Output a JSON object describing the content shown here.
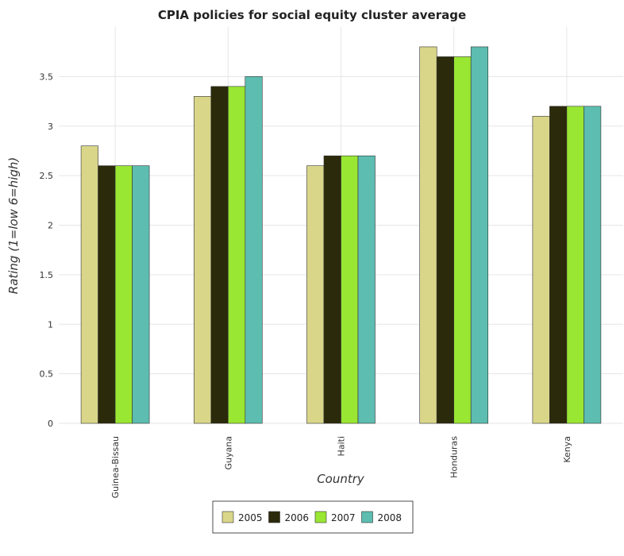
{
  "chart_data": {
    "type": "bar",
    "title": "CPIA policies for social equity cluster average",
    "xlabel": "Country",
    "ylabel": "Rating (1=low 6=high)",
    "categories": [
      "Guinea-Bissau",
      "Guyana",
      "Haiti",
      "Honduras",
      "Kenya"
    ],
    "series": [
      {
        "name": "2005",
        "color": "#d9d68a",
        "values": [
          2.8,
          3.3,
          2.6,
          3.8,
          3.1
        ]
      },
      {
        "name": "2006",
        "color": "#2b2a0a",
        "values": [
          2.6,
          3.4,
          2.7,
          3.7,
          3.2
        ]
      },
      {
        "name": "2007",
        "color": "#99e633",
        "values": [
          2.6,
          3.4,
          2.7,
          3.7,
          3.2
        ]
      },
      {
        "name": "2008",
        "color": "#5cbdb0",
        "values": [
          2.6,
          3.5,
          2.7,
          3.8,
          3.2
        ]
      }
    ],
    "ylim": [
      0,
      4
    ],
    "yticks": [
      0,
      0.5,
      1,
      1.5,
      2,
      2.5,
      3,
      3.5
    ],
    "ytick_labels": [
      "0",
      "0.5",
      "1",
      "1.5",
      "2",
      "2.5",
      "3",
      "3.5"
    ],
    "grid": true,
    "legend_placement": "bottom-center"
  }
}
